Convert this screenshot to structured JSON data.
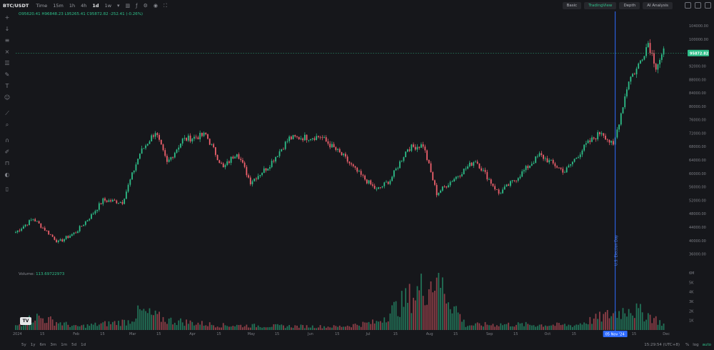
{
  "header": {
    "pair": "BTC/USDT",
    "time_label": "Time",
    "timeframes": [
      "15m",
      "1h",
      "4h",
      "1d",
      "1w"
    ],
    "active_timeframe": "1d",
    "views": [
      "Basic",
      "TradingView",
      "Depth",
      "AI Analysis"
    ],
    "active_view": "TradingView"
  },
  "ohlc": "O95620.41 H96848.23 L95265.41 C95872.82 -252.41 (-0.26%)",
  "volume_label": "Volume:",
  "volume_value": "113.69722973",
  "bottom": {
    "ranges": [
      "5y",
      "1y",
      "6m",
      "3m",
      "1m",
      "5d",
      "1d"
    ],
    "clock": "15:29:54 (UTC+8)",
    "scale_options": [
      "%",
      "log",
      "auto"
    ],
    "active_scale": "auto"
  },
  "colors": {
    "up": "#2ec08a",
    "down": "#f0616d",
    "event_line": "#2f6bff",
    "background": "#16171b"
  },
  "chart_data": [
    {
      "type": "candlestick",
      "price_axis": {
        "ticks": [
          "104000.00",
          "100000.00",
          "96000.00",
          "92000.00",
          "88000.00",
          "84000.00",
          "80000.00",
          "76000.00",
          "72000.00",
          "68000.00",
          "64000.00",
          "60000.00",
          "56000.00",
          "52000.00",
          "48000.00",
          "44000.00",
          "40000.00",
          "36000.00"
        ],
        "range": [
          32500,
          107000
        ]
      },
      "time_axis": {
        "labels": [
          "2024",
          "15",
          "Feb",
          "15",
          "Mar",
          "15",
          "Apr",
          "15",
          "May",
          "15",
          "Jun",
          "15",
          "Jul",
          "15",
          "Aug",
          "15",
          "Sep",
          "15",
          "Oct",
          "15",
          "15",
          "Dec"
        ],
        "start": "2024-01-01",
        "end": "2024-12-02"
      },
      "last_price": "95872.82",
      "annotations": [
        {
          "date": "2024-11-05",
          "label": "U.S. Election Day",
          "axis_label": "05 Nov '24"
        }
      ],
      "close_keypoints": [
        {
          "date": "2024-01-01",
          "price": 42500
        },
        {
          "date": "2024-01-10",
          "price": 46500
        },
        {
          "date": "2024-01-23",
          "price": 39500
        },
        {
          "date": "2024-02-01",
          "price": 42500
        },
        {
          "date": "2024-02-09",
          "price": 47500
        },
        {
          "date": "2024-02-15",
          "price": 52000
        },
        {
          "date": "2024-02-25",
          "price": 51500
        },
        {
          "date": "2024-03-05",
          "price": 66000
        },
        {
          "date": "2024-03-13",
          "price": 72500
        },
        {
          "date": "2024-03-19",
          "price": 63000
        },
        {
          "date": "2024-03-27",
          "price": 70000
        },
        {
          "date": "2024-04-08",
          "price": 71500
        },
        {
          "date": "2024-04-17",
          "price": 61500
        },
        {
          "date": "2024-04-24",
          "price": 66500
        },
        {
          "date": "2024-05-01",
          "price": 57500
        },
        {
          "date": "2024-05-10",
          "price": 62000
        },
        {
          "date": "2024-05-21",
          "price": 70500
        },
        {
          "date": "2024-06-06",
          "price": 71000
        },
        {
          "date": "2024-06-18",
          "price": 65000
        },
        {
          "date": "2024-06-24",
          "price": 61000
        },
        {
          "date": "2024-07-05",
          "price": 55000
        },
        {
          "date": "2024-07-12",
          "price": 58000
        },
        {
          "date": "2024-07-21",
          "price": 67500
        },
        {
          "date": "2024-07-29",
          "price": 68500
        },
        {
          "date": "2024-08-05",
          "price": 54000
        },
        {
          "date": "2024-08-15",
          "price": 59000
        },
        {
          "date": "2024-08-25",
          "price": 64000
        },
        {
          "date": "2024-09-06",
          "price": 54000
        },
        {
          "date": "2024-09-15",
          "price": 58500
        },
        {
          "date": "2024-09-27",
          "price": 65500
        },
        {
          "date": "2024-10-10",
          "price": 60500
        },
        {
          "date": "2024-10-21",
          "price": 68500
        },
        {
          "date": "2024-10-29",
          "price": 72500
        },
        {
          "date": "2024-11-04",
          "price": 68000
        },
        {
          "date": "2024-11-12",
          "price": 88000
        },
        {
          "date": "2024-11-16",
          "price": 91000
        },
        {
          "date": "2024-11-22",
          "price": 99000
        },
        {
          "date": "2024-11-26",
          "price": 92000
        },
        {
          "date": "2024-11-30",
          "price": 96000
        }
      ],
      "volume_axis": {
        "ticks": [
          "6M",
          "5K",
          "4K",
          "3K",
          "2K",
          "1K"
        ]
      },
      "volume_keypoints": [
        {
          "date": "2024-01-01",
          "value": 0.4
        },
        {
          "date": "2024-01-11",
          "value": 1.4
        },
        {
          "date": "2024-02-01",
          "value": 0.35
        },
        {
          "date": "2024-02-28",
          "value": 0.9
        },
        {
          "date": "2024-03-05",
          "value": 1.9
        },
        {
          "date": "2024-03-20",
          "value": 1.0
        },
        {
          "date": "2024-04-15",
          "value": 0.5
        },
        {
          "date": "2024-05-20",
          "value": 0.4
        },
        {
          "date": "2024-06-15",
          "value": 0.35
        },
        {
          "date": "2024-07-05",
          "value": 0.8
        },
        {
          "date": "2024-08-05",
          "value": 5.5
        },
        {
          "date": "2024-08-20",
          "value": 0.5
        },
        {
          "date": "2024-09-06",
          "value": 0.6
        },
        {
          "date": "2024-10-15",
          "value": 0.5
        },
        {
          "date": "2024-11-12",
          "value": 2.2
        },
        {
          "date": "2024-11-22",
          "value": 1.6
        },
        {
          "date": "2024-11-30",
          "value": 0.6
        }
      ]
    }
  ]
}
